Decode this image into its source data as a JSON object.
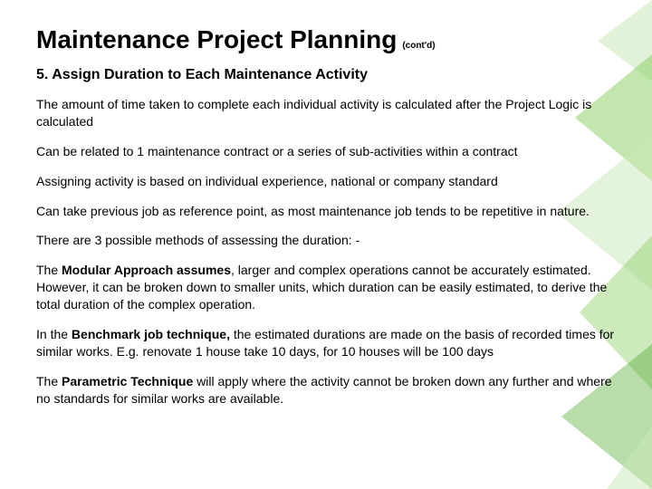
{
  "title": "Maintenance Project Planning",
  "title_suffix": "(cont'd)",
  "subtitle": "5. Assign Duration to Each Maintenance Activity",
  "paragraphs": [
    {
      "plain": "The amount of time taken to complete each individual activity is calculated after the Project Logic is calculated"
    },
    {
      "plain": "Can be related to 1 maintenance contract or a series of sub-activities within a contract"
    },
    {
      "plain": "Assigning activity is based on individual experience, national or company standard"
    },
    {
      "plain": "Can take previous job as reference point, as most maintenance job tends to be repetitive in nature."
    },
    {
      "plain": "There are 3 possible methods of assessing the duration: -"
    },
    {
      "lead": "The ",
      "bold": "Modular Approach assumes",
      "rest": ", larger and complex operations cannot be accurately estimated. However, it can be broken down to smaller units, which duration can be easily estimated, to derive the total duration of the complex operation."
    },
    {
      "lead": "In the ",
      "bold": "Benchmark job technique,",
      "rest": " the estimated durations are made on the basis of recorded times for similar works. E.g. renovate 1 house take 10 days, for 10 houses will be 100 days"
    },
    {
      "lead": "The ",
      "bold": "Parametric Technique",
      "rest": " will apply where the activity cannot be broken down any further and where no standards for similar works are available."
    }
  ],
  "accent": {
    "color_light": "#c9e8b8",
    "color_mid": "#8fd16a",
    "color_dark": "#4fa82e"
  }
}
